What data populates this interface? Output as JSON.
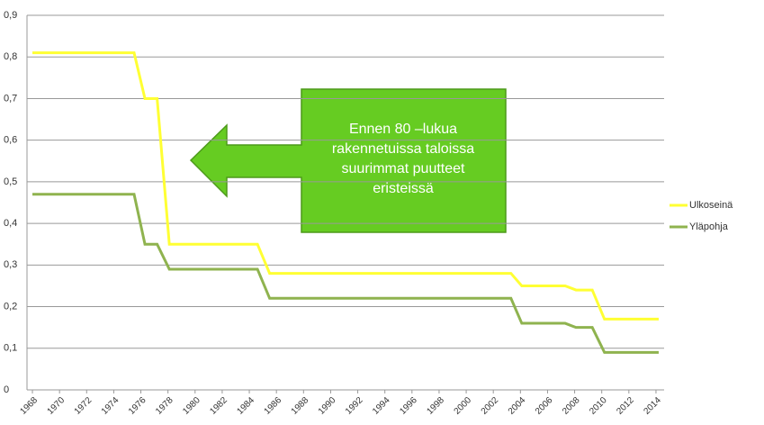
{
  "chart_data": {
    "type": "line",
    "x": [
      1968,
      1975.5,
      1976.3,
      1977.2,
      1978.1,
      1984.6,
      1985.5,
      2003.3,
      2004.1,
      2007.3,
      2008.1,
      2009.3,
      2010.2,
      2014.2
    ],
    "series": [
      {
        "name": "Ulkoseinä",
        "color": "#ffff33",
        "values": [
          0.81,
          0.81,
          0.7,
          0.7,
          0.35,
          0.35,
          0.28,
          0.28,
          0.25,
          0.25,
          0.24,
          0.24,
          0.17,
          0.17
        ]
      },
      {
        "name": "Yläpohja",
        "color": "#8fb34f",
        "values": [
          0.47,
          0.47,
          0.35,
          0.35,
          0.29,
          0.29,
          0.22,
          0.22,
          0.16,
          0.16,
          0.15,
          0.15,
          0.09,
          0.09
        ]
      }
    ],
    "xlim": [
      1967.6,
      2014.6
    ],
    "xticks": [
      1968,
      1970,
      1972,
      1974,
      1976,
      1978,
      1980,
      1982,
      1984,
      1986,
      1988,
      1990,
      1992,
      1994,
      1996,
      1998,
      2000,
      2002,
      2004,
      2006,
      2008,
      2010,
      2012,
      2014
    ],
    "ylim": [
      0,
      0.9
    ],
    "yticks": [
      0,
      {
        "value": 0.1,
        "label": "0,1"
      },
      {
        "value": 0.2,
        "label": "0,2"
      },
      {
        "value": 0.3,
        "label": "0,3"
      },
      {
        "value": 0.4,
        "label": "0,4"
      },
      {
        "value": 0.5,
        "label": "0,5"
      },
      {
        "value": 0.6,
        "label": "0,6"
      },
      {
        "value": 0.7,
        "label": "0,7"
      },
      {
        "value": 0.8,
        "label": "0,8"
      },
      {
        "value": 0.9,
        "label": "0,9"
      }
    ],
    "grid": true,
    "legend": "right",
    "annotation": [
      "Ennen 80 –lukua",
      "rakennetuissa taloissa",
      "suurimmat puutteet",
      "eristeissä"
    ]
  }
}
